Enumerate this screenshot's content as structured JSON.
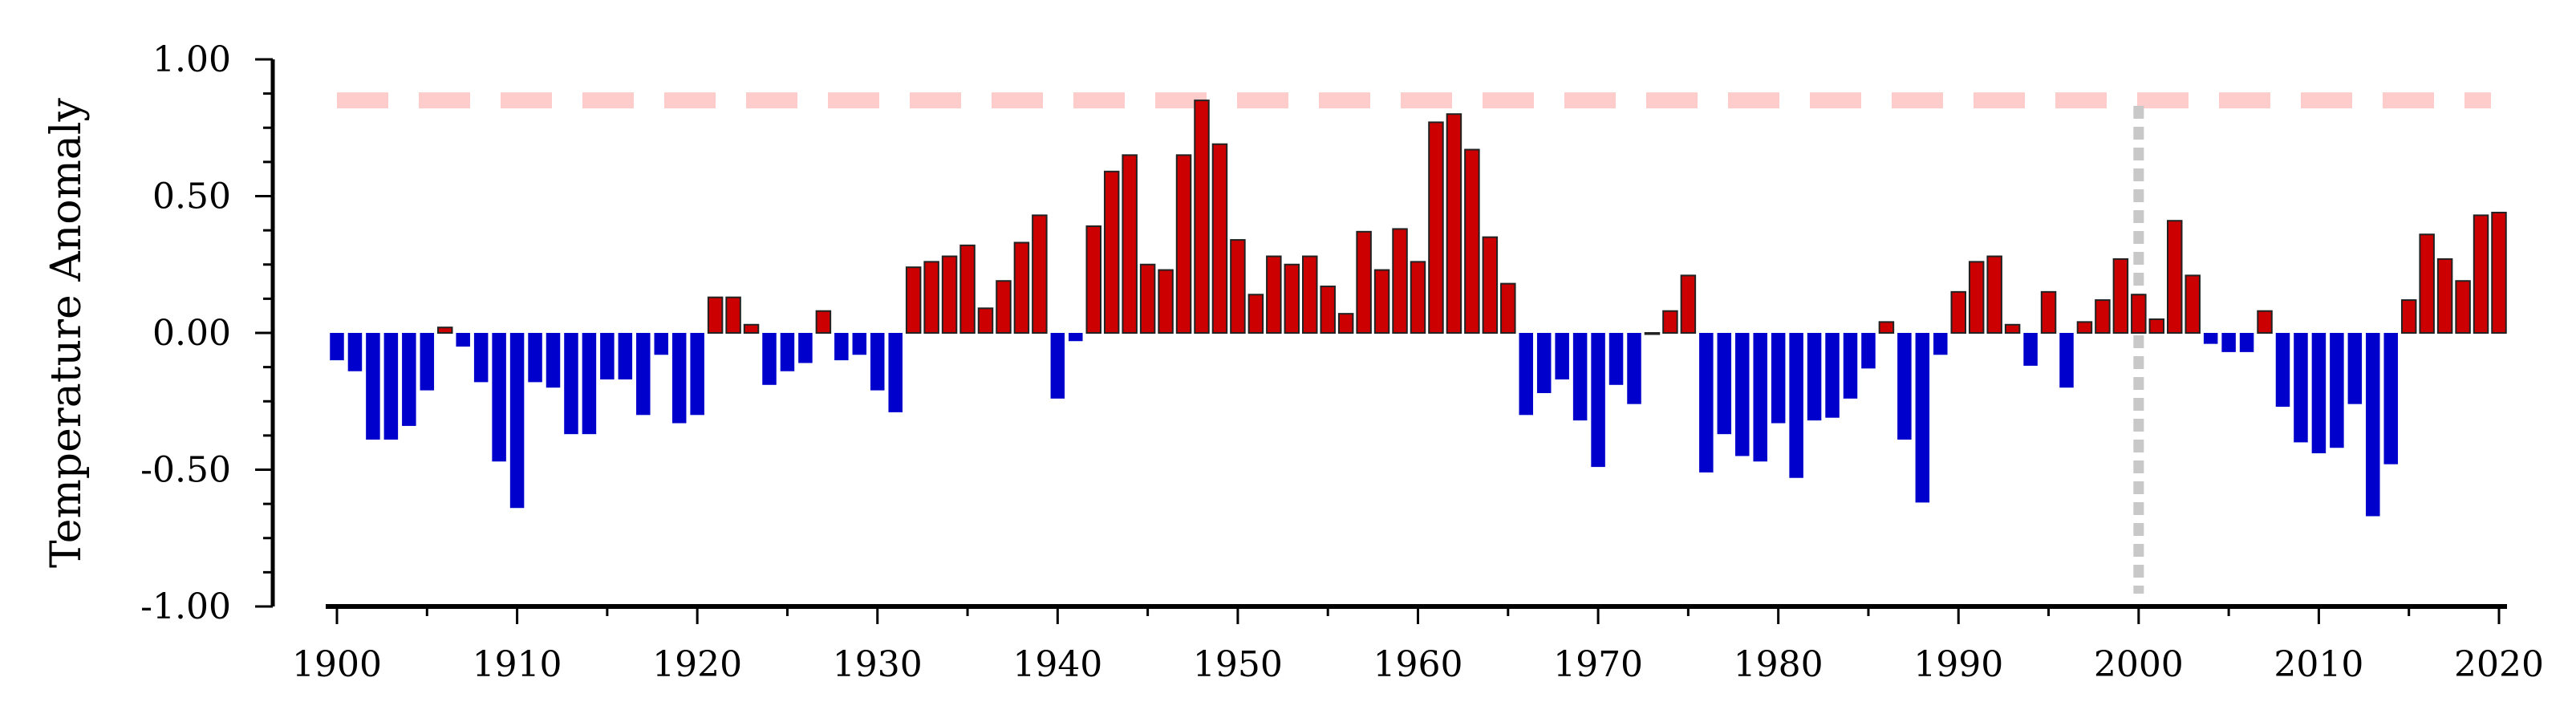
{
  "chart_data": {
    "type": "bar",
    "title": "",
    "xlabel": "",
    "ylabel": "Temperature Anomaly",
    "xlim": [
      1900,
      2020
    ],
    "ylim": [
      -1.0,
      1.0
    ],
    "x_ticks": [
      1900,
      1910,
      1920,
      1930,
      1940,
      1950,
      1960,
      1970,
      1980,
      1990,
      2000,
      2010,
      2020
    ],
    "x_tick_labels": [
      "1900",
      "1910",
      "1920",
      "1930",
      "1940",
      "1950",
      "1960",
      "1970",
      "1980",
      "1990",
      "2000",
      "2010",
      "2020"
    ],
    "y_ticks": [
      -1.0,
      -0.5,
      0.0,
      0.5,
      1.0
    ],
    "y_tick_labels": [
      "-1.00",
      "-0.50",
      "0.00",
      "0.50",
      "1.00"
    ],
    "grid": false,
    "legend": "none",
    "reference_lines": [
      {
        "orientation": "horizontal",
        "value": 0.85,
        "style": "dashed",
        "color": "#ffcccc"
      },
      {
        "orientation": "vertical",
        "value": 2000,
        "style": "dotted",
        "color": "#c8c8c8"
      }
    ],
    "colors": {
      "positive": "#cc0000",
      "negative": "#0000cc",
      "positive_outline": "#222222",
      "axis": "#000000"
    },
    "years": [
      1900,
      1901,
      1902,
      1903,
      1904,
      1905,
      1906,
      1907,
      1908,
      1909,
      1910,
      1911,
      1912,
      1913,
      1914,
      1915,
      1916,
      1917,
      1918,
      1919,
      1920,
      1921,
      1922,
      1923,
      1924,
      1925,
      1926,
      1927,
      1928,
      1929,
      1930,
      1931,
      1932,
      1933,
      1934,
      1935,
      1936,
      1937,
      1938,
      1939,
      1940,
      1941,
      1942,
      1943,
      1944,
      1945,
      1946,
      1947,
      1948,
      1949,
      1950,
      1951,
      1952,
      1953,
      1954,
      1955,
      1956,
      1957,
      1958,
      1959,
      1960,
      1961,
      1962,
      1963,
      1964,
      1965,
      1966,
      1967,
      1968,
      1969,
      1970,
      1971,
      1972,
      1973,
      1974,
      1975,
      1976,
      1977,
      1978,
      1979,
      1980,
      1981,
      1982,
      1983,
      1984,
      1985,
      1986,
      1987,
      1988,
      1989,
      1990,
      1991,
      1992,
      1993,
      1994,
      1995,
      1996,
      1997,
      1998,
      1999,
      2000,
      2001,
      2002,
      2003,
      2004,
      2005,
      2006,
      2007,
      2008,
      2009,
      2010,
      2011,
      2012,
      2013,
      2014,
      2015,
      2016,
      2017,
      2018,
      2019,
      2020
    ],
    "values": [
      -0.1,
      -0.14,
      -0.39,
      -0.39,
      -0.34,
      -0.21,
      0.02,
      -0.05,
      -0.18,
      -0.47,
      -0.64,
      -0.18,
      -0.2,
      -0.37,
      -0.37,
      -0.17,
      -0.17,
      -0.3,
      -0.08,
      -0.33,
      -0.3,
      0.13,
      0.13,
      0.03,
      -0.19,
      -0.14,
      -0.11,
      0.08,
      -0.1,
      -0.08,
      -0.21,
      -0.29,
      0.24,
      0.26,
      0.28,
      0.32,
      0.09,
      0.19,
      0.33,
      0.43,
      -0.24,
      -0.03,
      0.39,
      0.59,
      0.65,
      0.25,
      0.23,
      0.65,
      0.85,
      0.69,
      0.34,
      0.14,
      0.28,
      0.25,
      0.28,
      0.17,
      0.07,
      0.37,
      0.23,
      0.38,
      0.26,
      0.77,
      0.8,
      0.67,
      0.35,
      0.18,
      -0.3,
      -0.22,
      -0.17,
      -0.32,
      -0.49,
      -0.19,
      -0.26,
      0.0,
      0.08,
      0.21,
      -0.51,
      -0.37,
      -0.45,
      -0.47,
      -0.33,
      -0.53,
      -0.32,
      -0.31,
      -0.24,
      -0.13,
      0.04,
      -0.39,
      -0.62,
      -0.08,
      0.15,
      0.26,
      0.28,
      0.03,
      -0.12,
      0.15,
      -0.2,
      0.04,
      0.12,
      0.27,
      0.14,
      0.05,
      0.41,
      0.21,
      -0.04,
      -0.07,
      -0.07,
      0.08,
      -0.27,
      -0.4,
      -0.44,
      -0.42,
      -0.26,
      -0.67,
      -0.48,
      0.12,
      0.36,
      0.27,
      0.19,
      0.43,
      0.44
    ]
  }
}
